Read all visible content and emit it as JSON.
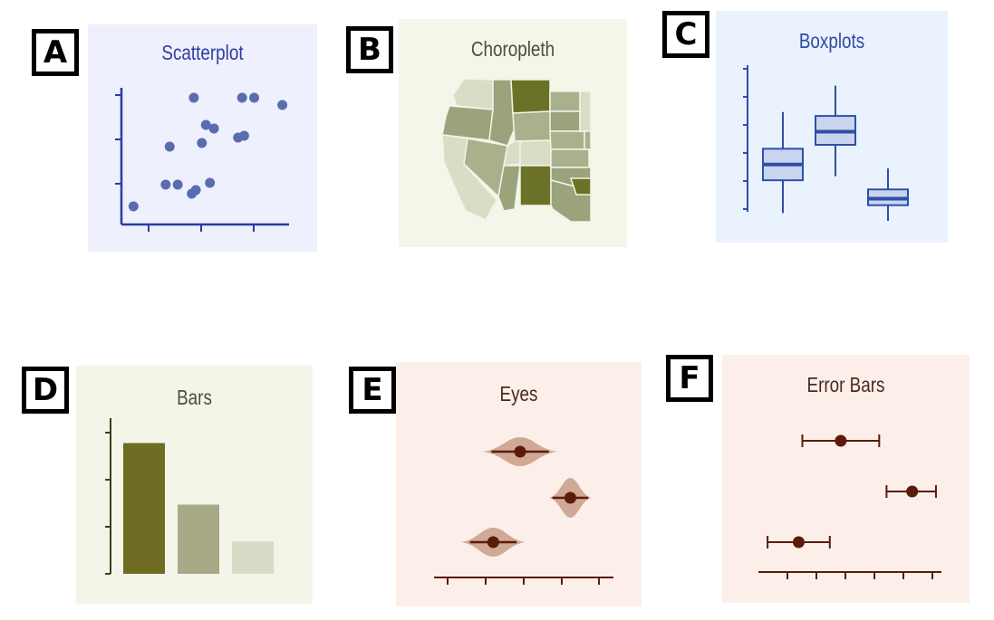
{
  "panels": [
    {
      "letter": "A",
      "title": "Scatterplot",
      "bg": "#eef0fd",
      "color": "#2f3ea3"
    },
    {
      "letter": "B",
      "title": "Choropleth",
      "bg": "#f4f6e9",
      "color": "#4a4f3a"
    },
    {
      "letter": "C",
      "title": "Boxplots",
      "bg": "#e9f2fd",
      "color": "#2f4aa3"
    },
    {
      "letter": "D",
      "title": "Bars",
      "bg": "#f4f5e9",
      "color": "#4a4f3a"
    },
    {
      "letter": "E",
      "title": "Eyes",
      "bg": "#fcefe9",
      "color": "#4a2a20"
    },
    {
      "letter": "F",
      "title": "Error Bars",
      "bg": "#fcefe9",
      "color": "#4a2a20"
    }
  ],
  "colors": {
    "scatter_point": "#5a6cb0",
    "scatter_axis": "#2b3aa8",
    "box_fill": "#c9d5ef",
    "box_stroke": "#2f4fa8",
    "bar_colors": [
      "#6f6c24",
      "#a7a987",
      "#d9dbc7"
    ],
    "eye_fill": "#c79c86",
    "eye_dark": "#5b1a0a"
  },
  "scatter_points": [
    [
      0.06,
      0.1
    ],
    [
      0.22,
      0.22
    ],
    [
      0.28,
      0.22
    ],
    [
      0.35,
      0.17
    ],
    [
      0.37,
      0.19
    ],
    [
      0.44,
      0.23
    ],
    [
      0.24,
      0.43
    ],
    [
      0.4,
      0.45
    ],
    [
      0.42,
      0.55
    ],
    [
      0.46,
      0.53
    ],
    [
      0.58,
      0.48
    ],
    [
      0.61,
      0.49
    ],
    [
      0.36,
      0.7
    ],
    [
      0.6,
      0.7
    ],
    [
      0.66,
      0.7
    ],
    [
      0.8,
      0.66
    ]
  ],
  "boxplots": [
    {
      "min": 0.08,
      "q1": 0.33,
      "median": 0.45,
      "q3": 0.57,
      "max": 0.85
    },
    {
      "min": 0.36,
      "q1": 0.6,
      "median": 0.7,
      "q3": 0.82,
      "max": 1.05
    },
    {
      "min": 0.02,
      "q1": 0.14,
      "median": 0.19,
      "q3": 0.26,
      "max": 0.42
    }
  ],
  "bars": [
    0.85,
    0.45,
    0.21
  ],
  "eyes": [
    {
      "center": 0.48,
      "ci": [
        0.32,
        0.64
      ],
      "spread": 0.21
    },
    {
      "center": 0.76,
      "ci": [
        0.66,
        0.86
      ],
      "spread": 0.12
    },
    {
      "center": 0.33,
      "ci": [
        0.2,
        0.46
      ],
      "spread": 0.18
    }
  ],
  "errorbars": [
    {
      "center": 0.45,
      "ci": [
        0.24,
        0.66
      ]
    },
    {
      "center": 0.84,
      "ci": [
        0.7,
        0.97
      ]
    },
    {
      "center": 0.22,
      "ci": [
        0.05,
        0.39
      ]
    }
  ]
}
